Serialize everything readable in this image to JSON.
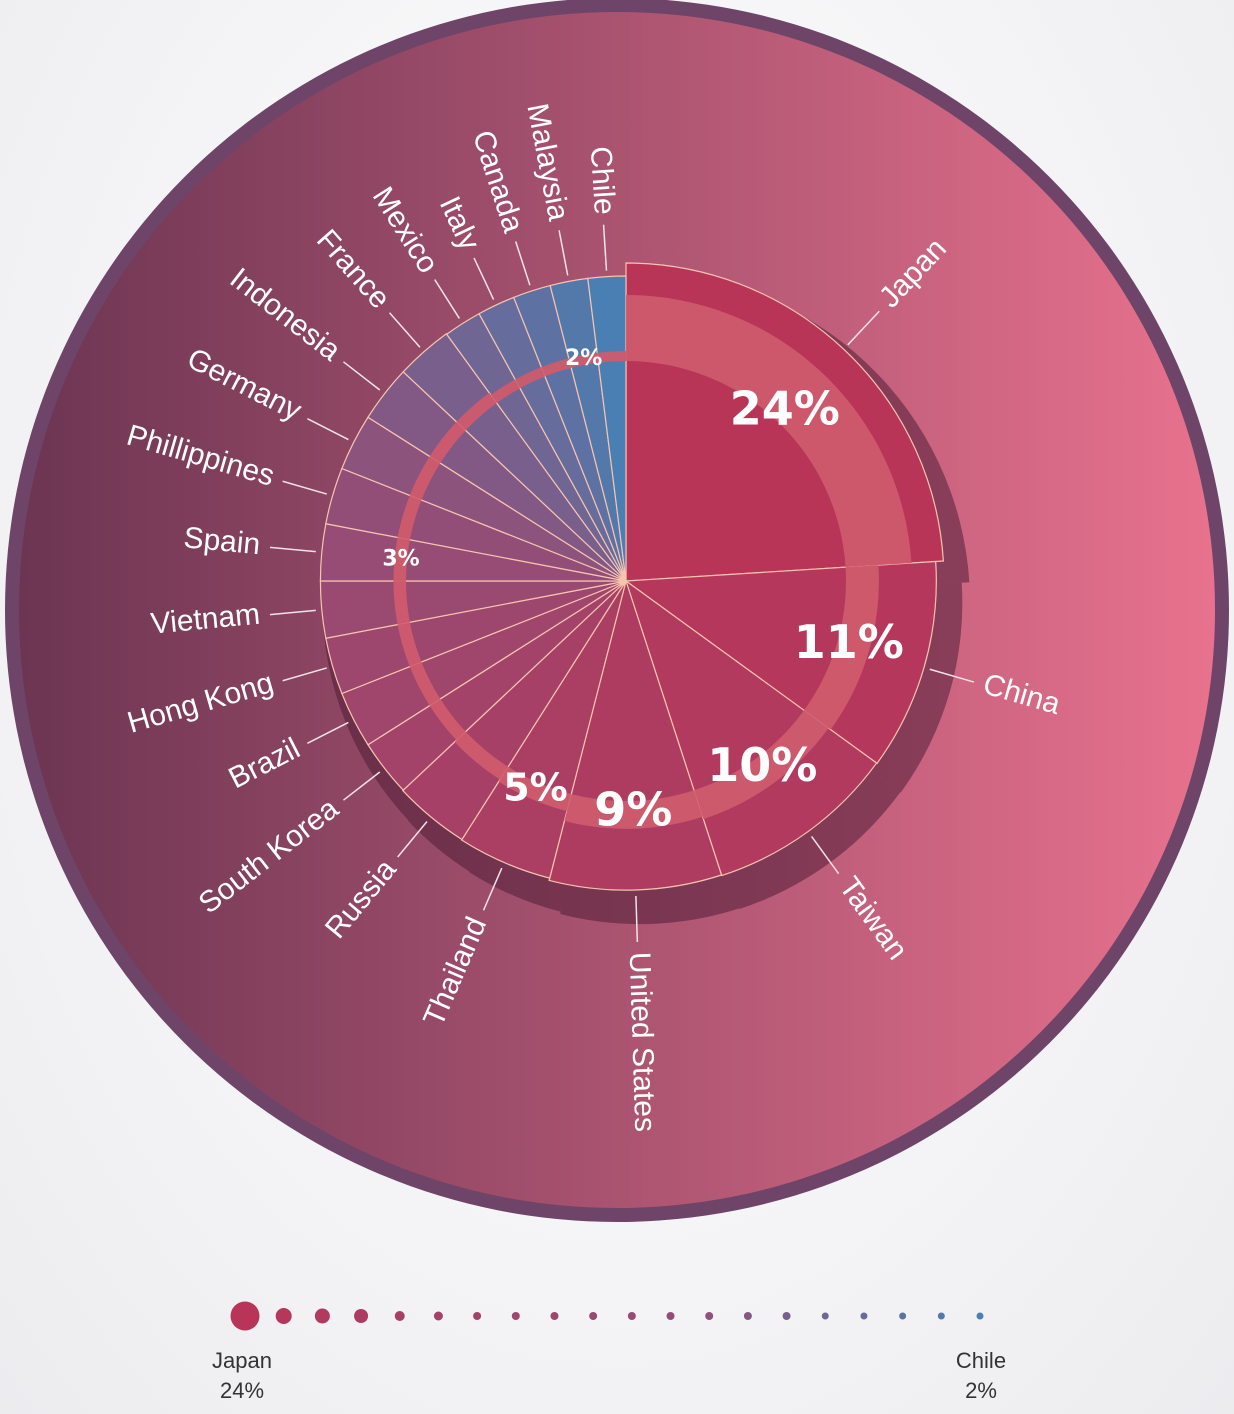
{
  "chart_data": {
    "type": "pie",
    "series": [
      {
        "label": "Japan",
        "value": 24
      },
      {
        "label": "China",
        "value": 11
      },
      {
        "label": "Taiwan",
        "value": 10
      },
      {
        "label": "United States",
        "value": 9
      },
      {
        "label": "Thailand",
        "value": 5
      },
      {
        "label": "Russia",
        "value": 4
      },
      {
        "label": "South Korea",
        "value": 3
      },
      {
        "label": "Brazil",
        "value": 3
      },
      {
        "label": "Hong Kong",
        "value": 3
      },
      {
        "label": "Vietnam",
        "value": 3
      },
      {
        "label": "Spain",
        "value": 3
      },
      {
        "label": "Phillippines",
        "value": 3
      },
      {
        "label": "Germany",
        "value": 3
      },
      {
        "label": "Indonesia",
        "value": 3
      },
      {
        "label": "France",
        "value": 3
      },
      {
        "label": "Mexico",
        "value": 2
      },
      {
        "label": "Italy",
        "value": 2
      },
      {
        "label": "Canada",
        "value": 2
      },
      {
        "label": "Malaysia",
        "value": 2
      },
      {
        "label": "Chile",
        "value": 2
      }
    ],
    "percent_labels": [
      {
        "text": "24%",
        "slice": "Japan"
      },
      {
        "text": "11%",
        "slice": "China"
      },
      {
        "text": "10%",
        "slice": "Taiwan"
      },
      {
        "text": "9%",
        "slice": "United States"
      },
      {
        "text": "5%",
        "slice": "Thailand"
      },
      {
        "text": "3%",
        "slice": "Spain"
      },
      {
        "text": "2%",
        "slice": "Malaysia"
      }
    ],
    "colors": {
      "start": "#b83558",
      "end": "#4a7fb3",
      "outer_ring": "#6e4468",
      "background_left": "#6c3552",
      "background_right": "#e8728e"
    },
    "legend": {
      "first": {
        "name": "Japan",
        "value": "24%"
      },
      "last": {
        "name": "Chile",
        "value": "2%"
      }
    }
  }
}
